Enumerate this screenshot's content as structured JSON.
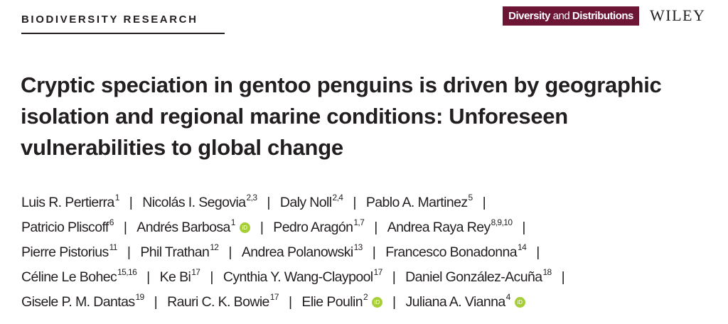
{
  "header": {
    "section": "BIODIVERSITY RESEARCH",
    "journal_bold_1": "Diversity",
    "journal_thin": " and ",
    "journal_bold_2": "Distributions",
    "publisher": "WILEY",
    "journal_color": "#6d1535"
  },
  "title": "Cryptic speciation in gentoo penguins is driven by geographic isolation and regional marine conditions: Unforeseen vulnerabilities to global change",
  "separator": "|",
  "orcid_label": "iD",
  "orcid_color": "#a6ce39",
  "author_rows": [
    [
      {
        "name": "Luis R. Pertierra",
        "aff": "1"
      },
      {
        "name": "Nicolás I. Segovia",
        "aff": "2,3"
      },
      {
        "name": "Daly Noll",
        "aff": "2,4"
      },
      {
        "name": "Pablo A. Martinez",
        "aff": "5"
      }
    ],
    [
      {
        "name": "Patricio Pliscoff",
        "aff": "6"
      },
      {
        "name": "Andrés Barbosa",
        "aff": "1",
        "orcid": true
      },
      {
        "name": "Pedro Aragón",
        "aff": "1,7"
      },
      {
        "name": "Andrea Raya Rey",
        "aff": "8,9,10"
      }
    ],
    [
      {
        "name": "Pierre Pistorius",
        "aff": "11"
      },
      {
        "name": "Phil Trathan",
        "aff": "12"
      },
      {
        "name": "Andrea Polanowski",
        "aff": "13"
      },
      {
        "name": "Francesco Bonadonna",
        "aff": "14"
      }
    ],
    [
      {
        "name": "Céline Le Bohec",
        "aff": "15,16"
      },
      {
        "name": "Ke Bi",
        "aff": "17"
      },
      {
        "name": "Cynthia Y. Wang-Claypool",
        "aff": "17"
      },
      {
        "name": "Daniel González-Acuña",
        "aff": "18"
      }
    ],
    [
      {
        "name": "Gisele P. M. Dantas",
        "aff": "19"
      },
      {
        "name": "Rauri C. K. Bowie",
        "aff": "17"
      },
      {
        "name": "Elie Poulin",
        "aff": "2",
        "orcid": true
      },
      {
        "name": "Juliana A. Vianna",
        "aff": "4",
        "orcid": true
      }
    ]
  ]
}
